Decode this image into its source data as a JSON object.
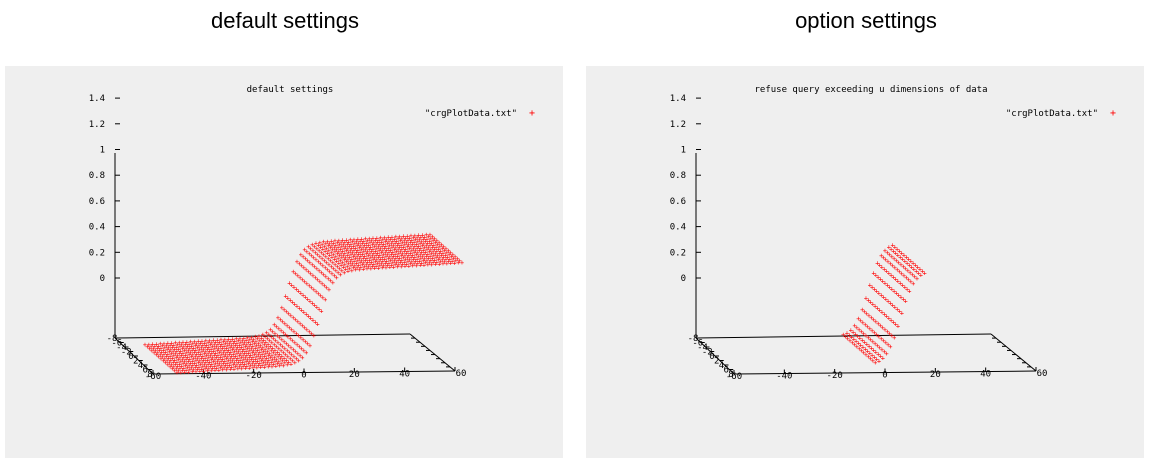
{
  "page": {
    "left_caption": "default settings",
    "right_caption": "option settings"
  },
  "colors": {
    "panel_bg": "#efefef",
    "data": "#ff0000",
    "axis": "#000000"
  },
  "chart_data": [
    {
      "type": "scatter",
      "title": "default settings",
      "legend": {
        "label": "\"crgPlotData.txt\"",
        "marker": "+",
        "placement": "top-right"
      },
      "zticks": [
        "1.4",
        "1.2",
        "1",
        "0.8",
        "0.6",
        "0.4",
        "0.2",
        "0"
      ],
      "xticks": [
        "-60",
        "-40",
        "-20",
        "0",
        "20",
        "40",
        "60"
      ],
      "yticks": [
        "-8",
        "-6",
        "-4",
        "-2",
        "0",
        "2",
        "4",
        "6",
        "8"
      ],
      "xrange": [
        -60,
        60
      ],
      "yrange": [
        -8,
        8
      ],
      "zrange": [
        -0.5,
        1.4
      ],
      "data_u": [
        -45,
        45
      ],
      "data_v": [
        -7,
        7
      ],
      "shape": "step from z=0 to z=1 centred at u=0"
    },
    {
      "type": "scatter",
      "title": "refuse query exceeding u dimensions of data",
      "legend": {
        "label": "\"crgPlotData.txt\"",
        "marker": "+",
        "placement": "top-right"
      },
      "zticks": [
        "1.4",
        "1.2",
        "1",
        "0.8",
        "0.6",
        "0.4",
        "0.2",
        "0"
      ],
      "xticks": [
        "-60",
        "-40",
        "-20",
        "0",
        "20",
        "40",
        "60"
      ],
      "yticks": [
        "-8",
        "-6",
        "-4",
        "-2",
        "0",
        "2",
        "4",
        "6",
        "8"
      ],
      "xrange": [
        -60,
        60
      ],
      "yrange": [
        -8,
        8
      ],
      "zrange": [
        -0.5,
        1.4
      ],
      "data_u": [
        -8,
        8
      ],
      "data_v": [
        -7,
        7
      ],
      "shape": "step from z=0 to z=1 centred at u=0"
    }
  ]
}
